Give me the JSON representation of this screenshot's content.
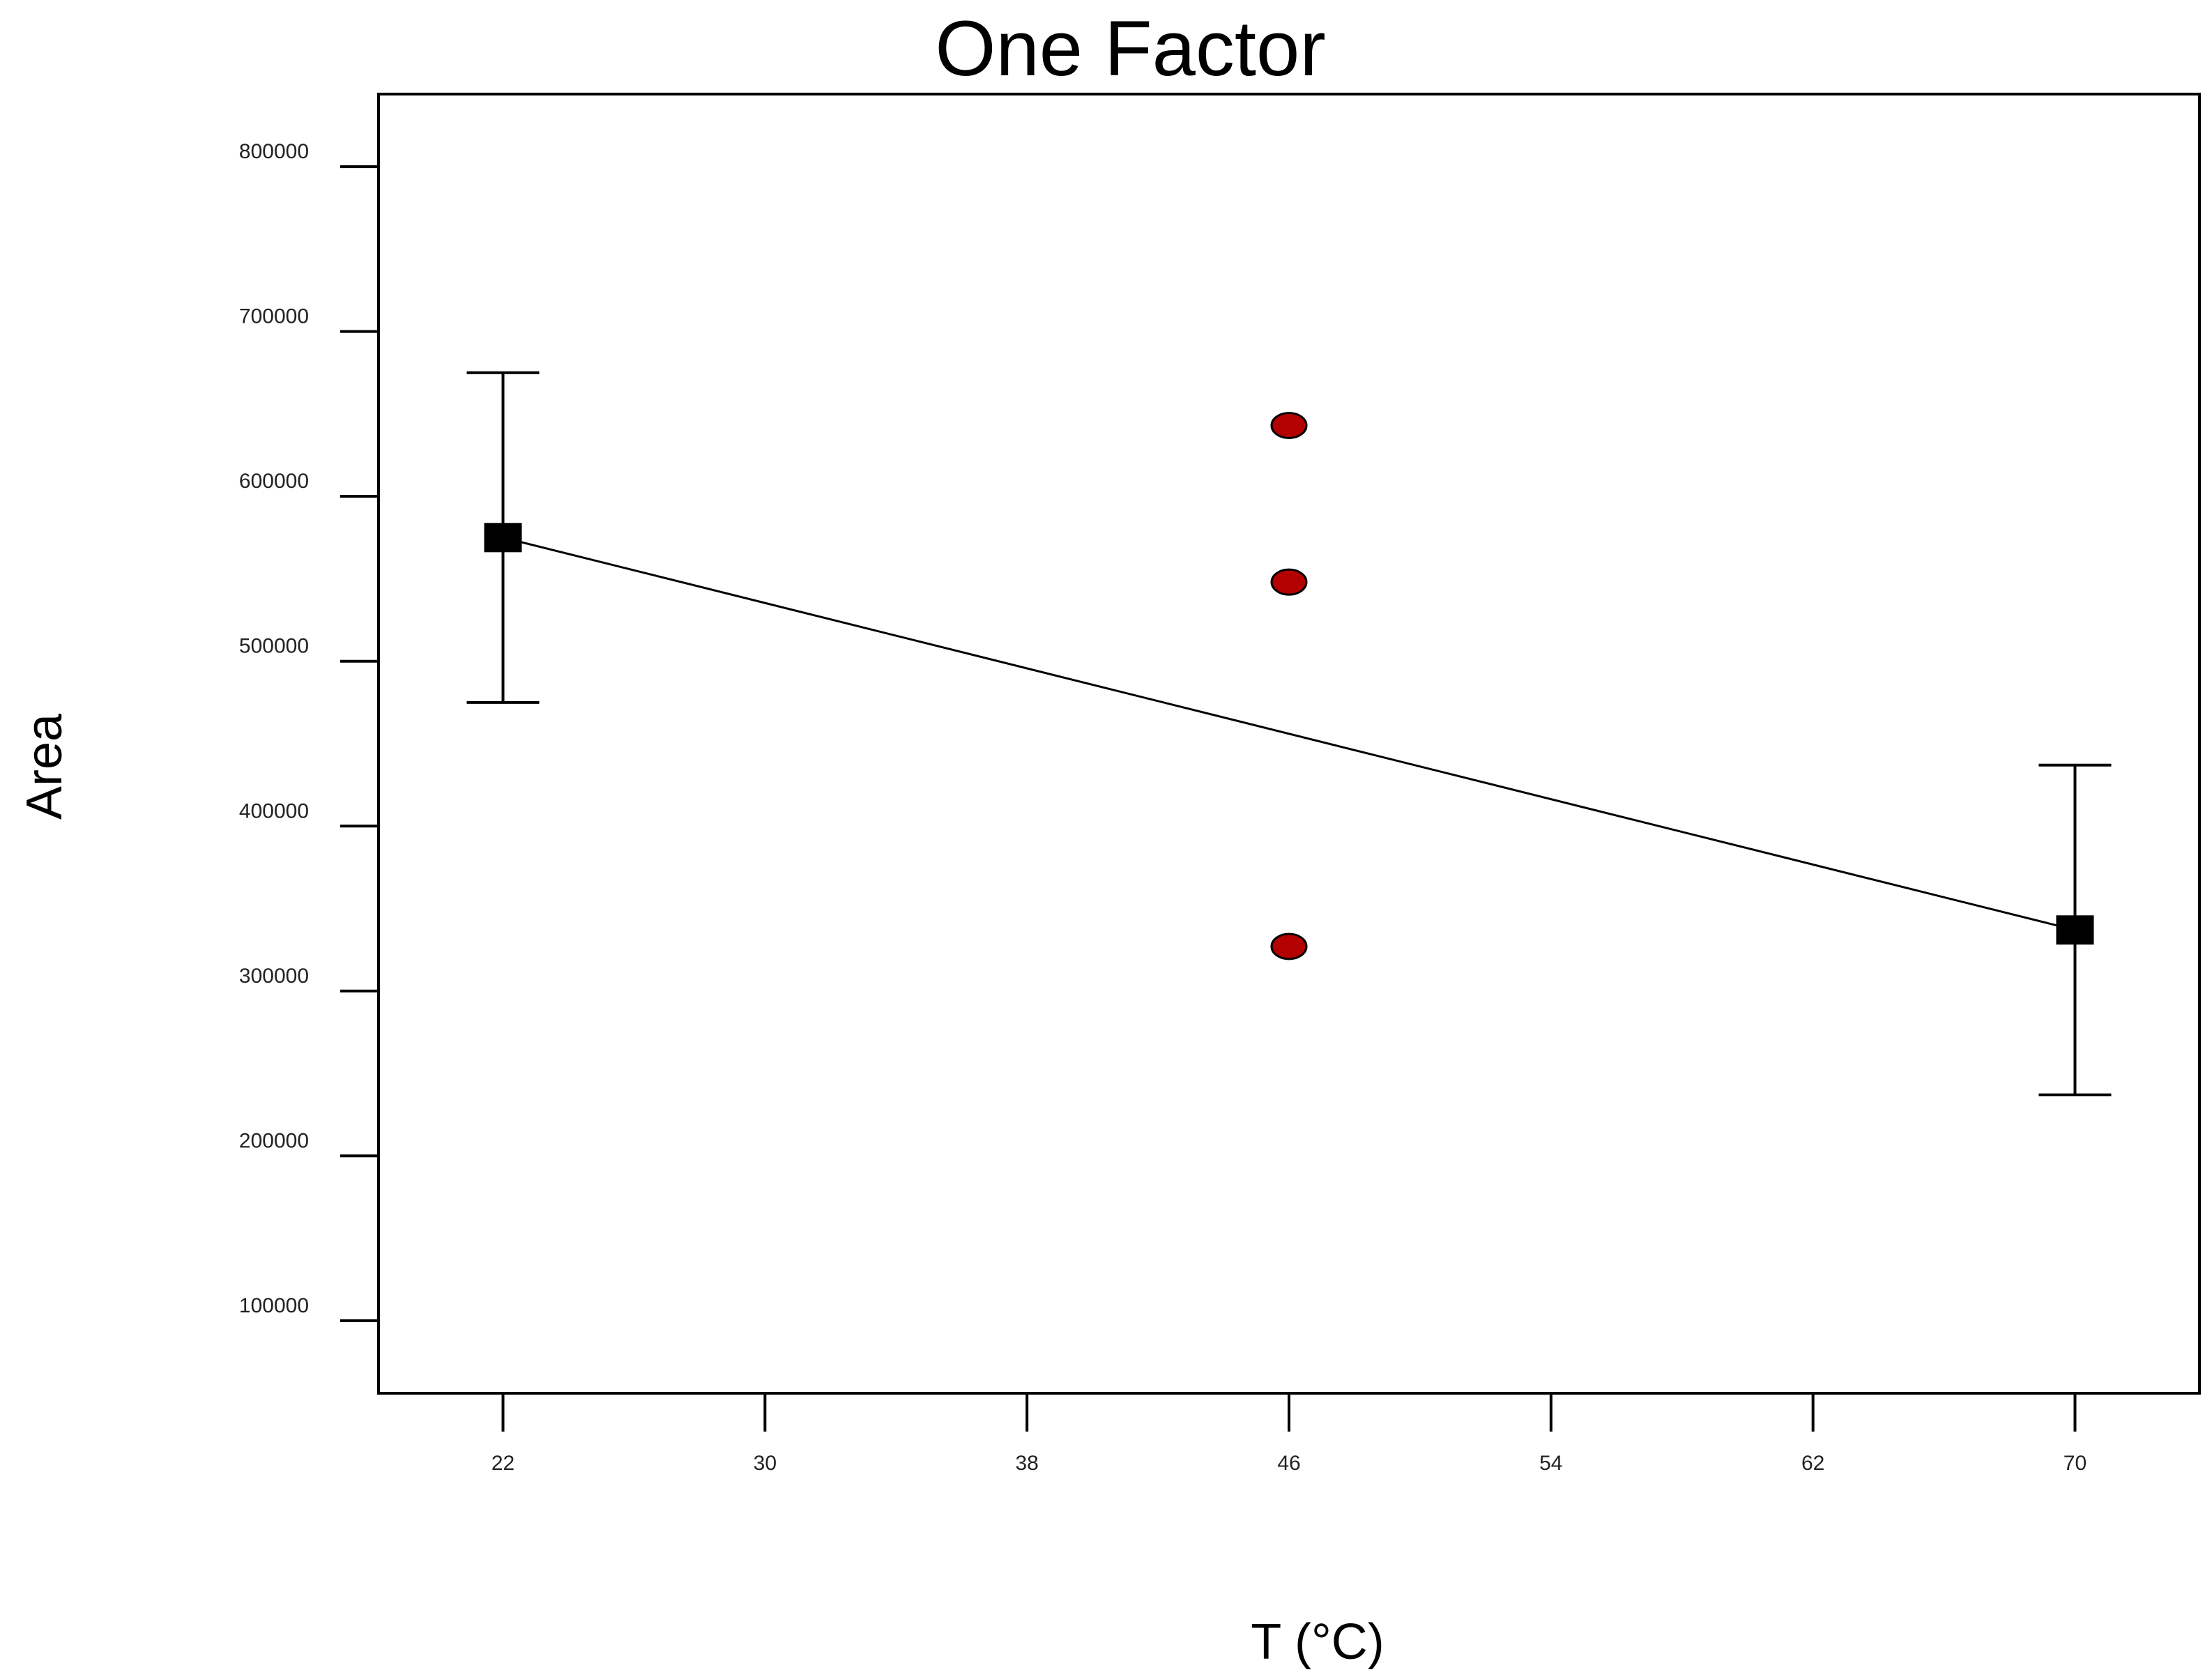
{
  "chart_data": {
    "type": "scatter",
    "title": "One Factor",
    "xlabel": "T (°C)",
    "ylabel": "Area",
    "xlim": [
      18.2,
      73.8
    ],
    "ylim": [
      56000,
      844000
    ],
    "xticks": [
      22,
      30,
      38,
      46,
      54,
      62,
      70
    ],
    "xtick_labels": [
      "22",
      "30",
      "38",
      "46",
      "54",
      "62",
      "70"
    ],
    "yticks": [
      100000,
      200000,
      300000,
      400000,
      500000,
      600000,
      700000,
      800000
    ],
    "ytick_labels": [
      "100000",
      "200000",
      "300000",
      "400000",
      "500000",
      "600000",
      "700000",
      "800000"
    ],
    "grid": false,
    "series": [
      {
        "kind": "fitted-line-with-error-bars",
        "marker": "square",
        "color": "#000000",
        "x": [
          22,
          70
        ],
        "y": [
          575000,
          337000
        ],
        "error_low": [
          475000,
          237000
        ],
        "error_high": [
          675000,
          437000
        ]
      },
      {
        "kind": "design-points",
        "marker": "circle",
        "color": "#b30000",
        "x": [
          46,
          46,
          46
        ],
        "y": [
          643000,
          548000,
          327000
        ]
      }
    ]
  }
}
